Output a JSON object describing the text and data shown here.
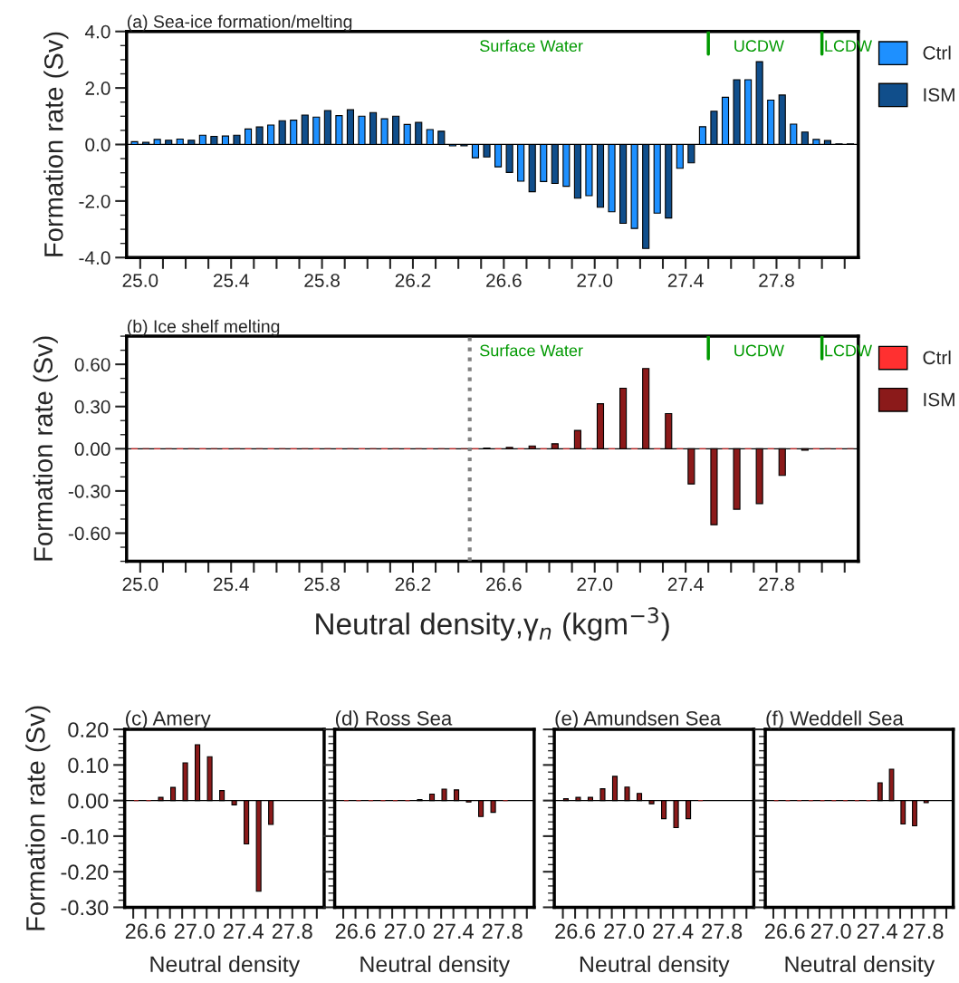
{
  "chart_data": [
    {
      "type": "bar",
      "title": "(a) Sea-ice formation/melting",
      "ylabel": "Formation rate (Sv)",
      "xlim": [
        24.94,
        28.16
      ],
      "ylim": [
        -4.0,
        4.0
      ],
      "xticks": [
        {
          "value": 25.0,
          "label": "25.0"
        },
        {
          "value": 25.1,
          "label": null
        },
        {
          "value": 25.2,
          "label": null
        },
        {
          "value": 25.3,
          "label": null
        },
        {
          "value": 25.4,
          "label": "25.4"
        },
        {
          "value": 25.5,
          "label": null
        },
        {
          "value": 25.6,
          "label": null
        },
        {
          "value": 25.7,
          "label": null
        },
        {
          "value": 25.8,
          "label": "25.8"
        },
        {
          "value": 25.9,
          "label": null
        },
        {
          "value": 26.0,
          "label": null
        },
        {
          "value": 26.1,
          "label": null
        },
        {
          "value": 26.2,
          "label": "26.2"
        },
        {
          "value": 26.3,
          "label": null
        },
        {
          "value": 26.4,
          "label": null
        },
        {
          "value": 26.5,
          "label": null
        },
        {
          "value": 26.6,
          "label": "26.6"
        },
        {
          "value": 26.7,
          "label": null
        },
        {
          "value": 26.8,
          "label": null
        },
        {
          "value": 26.9,
          "label": null
        },
        {
          "value": 27.0,
          "label": "27.0"
        },
        {
          "value": 27.1,
          "label": null
        },
        {
          "value": 27.2,
          "label": null
        },
        {
          "value": 27.3,
          "label": null
        },
        {
          "value": 27.4,
          "label": "27.4"
        },
        {
          "value": 27.5,
          "label": null
        },
        {
          "value": 27.6,
          "label": null
        },
        {
          "value": 27.7,
          "label": null
        },
        {
          "value": 27.8,
          "label": "27.8"
        },
        {
          "value": 27.9,
          "label": null
        },
        {
          "value": 28.0,
          "label": null
        },
        {
          "value": 28.1,
          "label": null
        }
      ],
      "yticks": [
        {
          "value": -4.0,
          "label": "-4.0"
        },
        {
          "value": -2.0,
          "label": "-2.0"
        },
        {
          "value": 0.0,
          "label": "0.0"
        },
        {
          "value": 2.0,
          "label": "2.0"
        },
        {
          "value": 4.0,
          "label": "4.0"
        }
      ],
      "legend": "top right",
      "ref_lines": [
        {
          "axis": "y",
          "value": 0,
          "color": "#000000",
          "line_style": "solid"
        },
        {
          "axis": "x",
          "value": 27.5,
          "color": "#009900",
          "line_style": "solid"
        },
        {
          "axis": "x",
          "value": 28.0,
          "color": "#009900",
          "line_style": "solid"
        }
      ],
      "annotations": [
        "Surface Water",
        "UCDW",
        "LCDW"
      ],
      "series": [
        {
          "name": "Ctrl",
          "color": "#1e90ff",
          "x": [
            24.975,
            25.075,
            25.175,
            25.275,
            25.375,
            25.475,
            25.575,
            25.675,
            25.775,
            25.875,
            25.975,
            26.075,
            26.175,
            26.275,
            26.375,
            26.475,
            26.575,
            26.675,
            26.775,
            26.875,
            26.975,
            27.075,
            27.175,
            27.275,
            27.375,
            27.475,
            27.575,
            27.675,
            27.775,
            27.875,
            27.975,
            28.075
          ],
          "values": [
            0.1,
            0.18,
            0.19,
            0.33,
            0.3,
            0.55,
            0.69,
            0.86,
            0.97,
            1.02,
            1.0,
            0.91,
            0.71,
            0.53,
            -0.05,
            -0.47,
            -0.79,
            -1.3,
            -1.31,
            -1.48,
            -1.81,
            -2.38,
            -2.97,
            -2.43,
            -0.84,
            0.63,
            1.67,
            2.29,
            1.57,
            0.72,
            0.18,
            0.02
          ]
        },
        {
          "name": "ISM",
          "color": "#104e8b",
          "x": [
            25.025,
            25.125,
            25.225,
            25.325,
            25.425,
            25.525,
            25.625,
            25.725,
            25.825,
            25.925,
            26.025,
            26.125,
            26.225,
            26.325,
            26.425,
            26.525,
            26.625,
            26.725,
            26.825,
            26.925,
            27.025,
            27.125,
            27.225,
            27.325,
            27.425,
            27.525,
            27.625,
            27.725,
            27.825,
            27.925,
            28.025,
            28.125
          ],
          "values": [
            0.08,
            0.15,
            0.15,
            0.29,
            0.33,
            0.62,
            0.84,
            1.04,
            1.2,
            1.23,
            1.13,
            1.0,
            0.78,
            0.47,
            -0.05,
            -0.44,
            -0.99,
            -1.67,
            -1.38,
            -1.9,
            -2.22,
            -2.79,
            -3.68,
            -2.6,
            -0.65,
            1.18,
            2.29,
            2.93,
            1.75,
            0.44,
            0.14,
            0.02
          ]
        }
      ]
    },
    {
      "type": "bar",
      "title": "(b) Ice shelf melting",
      "ylabel": "Formation rate (Sv)",
      "xlabel": "Neutral density,γ$_{n}$ (kgm$^{−3}$)",
      "xlim": [
        24.94,
        28.16
      ],
      "ylim": [
        -0.8,
        0.8
      ],
      "xticks": [
        {
          "value": 25.0,
          "label": "25.0"
        },
        {
          "value": 25.1,
          "label": null
        },
        {
          "value": 25.2,
          "label": null
        },
        {
          "value": 25.3,
          "label": null
        },
        {
          "value": 25.4,
          "label": "25.4"
        },
        {
          "value": 25.5,
          "label": null
        },
        {
          "value": 25.6,
          "label": null
        },
        {
          "value": 25.7,
          "label": null
        },
        {
          "value": 25.8,
          "label": "25.8"
        },
        {
          "value": 25.9,
          "label": null
        },
        {
          "value": 26.0,
          "label": null
        },
        {
          "value": 26.1,
          "label": null
        },
        {
          "value": 26.2,
          "label": "26.2"
        },
        {
          "value": 26.3,
          "label": null
        },
        {
          "value": 26.4,
          "label": null
        },
        {
          "value": 26.5,
          "label": null
        },
        {
          "value": 26.6,
          "label": "26.6"
        },
        {
          "value": 26.7,
          "label": null
        },
        {
          "value": 26.8,
          "label": null
        },
        {
          "value": 26.9,
          "label": null
        },
        {
          "value": 27.0,
          "label": "27.0"
        },
        {
          "value": 27.1,
          "label": null
        },
        {
          "value": 27.2,
          "label": null
        },
        {
          "value": 27.3,
          "label": null
        },
        {
          "value": 27.4,
          "label": "27.4"
        },
        {
          "value": 27.5,
          "label": null
        },
        {
          "value": 27.6,
          "label": null
        },
        {
          "value": 27.7,
          "label": null
        },
        {
          "value": 27.8,
          "label": "27.8"
        },
        {
          "value": 27.9,
          "label": null
        },
        {
          "value": 28.0,
          "label": null
        },
        {
          "value": 28.1,
          "label": null
        }
      ],
      "yticks": [
        {
          "value": -0.6,
          "label": "-0.60"
        },
        {
          "value": -0.3,
          "label": "-0.30"
        },
        {
          "value": 0.0,
          "label": "0.00"
        },
        {
          "value": 0.3,
          "label": "0.30"
        },
        {
          "value": 0.6,
          "label": "0.60"
        }
      ],
      "legend": "top right",
      "ref_lines": [
        {
          "axis": "y",
          "value": 0,
          "color": "#000000",
          "line_style": "solid"
        },
        {
          "axis": "x",
          "value": 26.45,
          "color": "#808080",
          "line_style": "dotted"
        },
        {
          "axis": "x",
          "value": 27.5,
          "color": "#009900",
          "line_style": "solid"
        },
        {
          "axis": "x",
          "value": 28.0,
          "color": "#009900",
          "line_style": "solid"
        }
      ],
      "annotations": [
        "Surface Water",
        "UCDW",
        "LCDW"
      ],
      "series": [
        {
          "name": "Ctrl",
          "color": "#ff3030",
          "x": [
            24.975,
            25.075,
            25.175,
            25.275,
            25.375,
            25.475,
            25.575,
            25.675,
            25.775,
            25.875,
            25.975,
            26.075,
            26.175,
            26.275,
            26.375,
            26.475,
            26.575,
            26.675,
            26.775,
            26.875,
            26.975,
            27.075,
            27.175,
            27.275,
            27.375,
            27.475,
            27.575,
            27.675,
            27.775,
            27.875,
            27.975,
            28.075
          ],
          "values": [
            0,
            0,
            0,
            0,
            0,
            0,
            0,
            0,
            0,
            0,
            0,
            0,
            0,
            0,
            0,
            0,
            0,
            0,
            0,
            0,
            0,
            0,
            0,
            0,
            0,
            0,
            0,
            0,
            0,
            0,
            0,
            0
          ]
        },
        {
          "name": "ISM",
          "color": "#8b1a1a",
          "x": [
            25.025,
            25.125,
            25.225,
            25.325,
            25.425,
            25.525,
            25.625,
            25.725,
            25.825,
            25.925,
            26.025,
            26.125,
            26.225,
            26.325,
            26.425,
            26.525,
            26.625,
            26.725,
            26.825,
            26.925,
            27.025,
            27.125,
            27.225,
            27.325,
            27.425,
            27.525,
            27.625,
            27.725,
            27.825,
            27.925,
            28.025,
            28.125
          ],
          "values": [
            0,
            0,
            0,
            0,
            0,
            0,
            0,
            0,
            0,
            0,
            0,
            0,
            0,
            0,
            0,
            0.005,
            0.01,
            0.02,
            0.035,
            0.13,
            0.32,
            0.43,
            0.57,
            0.25,
            -0.25,
            -0.54,
            -0.43,
            -0.39,
            -0.19,
            -0.01,
            0,
            0
          ]
        }
      ]
    },
    {
      "type": "bar",
      "title": "(c) Amery",
      "ylabel": "Formation rate (Sv)",
      "xlabel": "Neutral density",
      "xlim": [
        26.43,
        28.06
      ],
      "ylim": [
        -0.3,
        0.2
      ],
      "xticks": [
        {
          "value": 26.5,
          "label": null
        },
        {
          "value": 26.6,
          "label": "26.6"
        },
        {
          "value": 26.7,
          "label": null
        },
        {
          "value": 26.8,
          "label": null
        },
        {
          "value": 26.9,
          "label": null
        },
        {
          "value": 27.0,
          "label": "27.0"
        },
        {
          "value": 27.1,
          "label": null
        },
        {
          "value": 27.2,
          "label": null
        },
        {
          "value": 27.3,
          "label": null
        },
        {
          "value": 27.4,
          "label": "27.4"
        },
        {
          "value": 27.5,
          "label": null
        },
        {
          "value": 27.6,
          "label": null
        },
        {
          "value": 27.7,
          "label": null
        },
        {
          "value": 27.8,
          "label": "27.8"
        },
        {
          "value": 27.9,
          "label": null
        },
        {
          "value": 28.0,
          "label": null
        }
      ],
      "yticks": [
        {
          "value": -0.3,
          "label": "-0.30"
        },
        {
          "value": -0.2,
          "label": "-0.20"
        },
        {
          "value": -0.1,
          "label": "-0.10"
        },
        {
          "value": 0.0,
          "label": "0.00"
        },
        {
          "value": 0.1,
          "label": "0.10"
        },
        {
          "value": 0.2,
          "label": "0.20"
        }
      ],
      "ref_lines": [
        {
          "axis": "y",
          "value": 0,
          "color": "#000000",
          "line_style": "solid"
        }
      ],
      "series": [
        {
          "color": "#8b1a1a",
          "x": [
            26.525,
            26.625,
            26.725,
            26.825,
            26.925,
            27.025,
            27.125,
            27.225,
            27.325,
            27.425,
            27.525,
            27.625
          ],
          "values": [
            0,
            0,
            0.009,
            0.037,
            0.106,
            0.157,
            0.123,
            0.028,
            -0.012,
            -0.122,
            -0.255,
            -0.067
          ]
        }
      ]
    },
    {
      "type": "bar",
      "title": "(d) Ross Sea",
      "xlabel": "Neutral density",
      "tick_labels": "x",
      "xlim": [
        26.43,
        28.06
      ],
      "ylim": [
        -0.3,
        0.2
      ],
      "xticks": [
        {
          "value": 26.5,
          "label": null
        },
        {
          "value": 26.6,
          "label": "26.6"
        },
        {
          "value": 26.7,
          "label": null
        },
        {
          "value": 26.8,
          "label": null
        },
        {
          "value": 26.9,
          "label": null
        },
        {
          "value": 27.0,
          "label": "27.0"
        },
        {
          "value": 27.1,
          "label": null
        },
        {
          "value": 27.2,
          "label": null
        },
        {
          "value": 27.3,
          "label": null
        },
        {
          "value": 27.4,
          "label": "27.4"
        },
        {
          "value": 27.5,
          "label": null
        },
        {
          "value": 27.6,
          "label": null
        },
        {
          "value": 27.7,
          "label": null
        },
        {
          "value": 27.8,
          "label": "27.8"
        },
        {
          "value": 27.9,
          "label": null
        },
        {
          "value": 28.0,
          "label": null
        }
      ],
      "yticks": [
        -0.3,
        -0.2,
        -0.1,
        0.0,
        0.1,
        0.2
      ],
      "ref_lines": [
        {
          "axis": "y",
          "value": 0,
          "color": "#000000",
          "line_style": "solid"
        }
      ],
      "series": [
        {
          "color": "#8b1a1a",
          "x": [
            26.525,
            26.625,
            26.725,
            26.825,
            26.925,
            27.025,
            27.125,
            27.225,
            27.325,
            27.425,
            27.525,
            27.625,
            27.725,
            27.825
          ],
          "values": [
            0,
            0,
            0,
            0,
            0,
            0,
            0.003,
            0.018,
            0.032,
            0.03,
            -0.004,
            -0.045,
            -0.033,
            0
          ]
        }
      ]
    },
    {
      "type": "bar",
      "title": "(e) Amundsen Sea",
      "xlabel": "Neutral density",
      "tick_labels": "x",
      "xlim": [
        26.43,
        28.06
      ],
      "ylim": [
        -0.3,
        0.2
      ],
      "xticks": [
        {
          "value": 26.5,
          "label": null
        },
        {
          "value": 26.6,
          "label": "26.6"
        },
        {
          "value": 26.7,
          "label": null
        },
        {
          "value": 26.8,
          "label": null
        },
        {
          "value": 26.9,
          "label": null
        },
        {
          "value": 27.0,
          "label": "27.0"
        },
        {
          "value": 27.1,
          "label": null
        },
        {
          "value": 27.2,
          "label": null
        },
        {
          "value": 27.3,
          "label": null
        },
        {
          "value": 27.4,
          "label": "27.4"
        },
        {
          "value": 27.5,
          "label": null
        },
        {
          "value": 27.6,
          "label": null
        },
        {
          "value": 27.7,
          "label": null
        },
        {
          "value": 27.8,
          "label": "27.8"
        },
        {
          "value": 27.9,
          "label": null
        },
        {
          "value": 28.0,
          "label": null
        }
      ],
      "yticks": [
        -0.3,
        -0.2,
        -0.1,
        0.0,
        0.1,
        0.2
      ],
      "ref_lines": [
        {
          "axis": "y",
          "value": 0,
          "color": "#000000",
          "line_style": "solid"
        }
      ],
      "series": [
        {
          "color": "#8b1a1a",
          "x": [
            26.525,
            26.625,
            26.725,
            26.825,
            26.925,
            27.025,
            27.125,
            27.225,
            27.325,
            27.425,
            27.525,
            27.625
          ],
          "values": [
            0.005,
            0.009,
            0.009,
            0.033,
            0.068,
            0.038,
            0.02,
            -0.009,
            -0.051,
            -0.076,
            -0.051,
            0
          ]
        }
      ]
    },
    {
      "type": "bar",
      "title": "(f) Weddell Sea",
      "xlabel": "Neutral density",
      "tick_labels": "x",
      "xlim": [
        26.43,
        28.06
      ],
      "ylim": [
        -0.3,
        0.2
      ],
      "xticks": [
        {
          "value": 26.5,
          "label": null
        },
        {
          "value": 26.6,
          "label": "26.6"
        },
        {
          "value": 26.7,
          "label": null
        },
        {
          "value": 26.8,
          "label": null
        },
        {
          "value": 26.9,
          "label": null
        },
        {
          "value": 27.0,
          "label": "27.0"
        },
        {
          "value": 27.1,
          "label": null
        },
        {
          "value": 27.2,
          "label": null
        },
        {
          "value": 27.3,
          "label": null
        },
        {
          "value": 27.4,
          "label": "27.4"
        },
        {
          "value": 27.5,
          "label": null
        },
        {
          "value": 27.6,
          "label": null
        },
        {
          "value": 27.7,
          "label": null
        },
        {
          "value": 27.8,
          "label": "27.8"
        },
        {
          "value": 27.9,
          "label": null
        },
        {
          "value": 28.0,
          "label": null
        }
      ],
      "yticks": [
        -0.3,
        -0.2,
        -0.1,
        0.0,
        0.1,
        0.2
      ],
      "ref_lines": [
        {
          "axis": "y",
          "value": 0,
          "color": "#000000",
          "line_style": "solid"
        }
      ],
      "series": [
        {
          "color": "#8b1a1a",
          "x": [
            26.525,
            26.625,
            26.725,
            26.825,
            26.925,
            27.025,
            27.125,
            27.225,
            27.325,
            27.425,
            27.525,
            27.625,
            27.725,
            27.825
          ],
          "values": [
            0,
            0,
            0,
            0,
            0,
            0,
            0,
            0,
            0,
            0.05,
            0.088,
            -0.066,
            -0.071,
            -0.006
          ]
        }
      ]
    }
  ]
}
